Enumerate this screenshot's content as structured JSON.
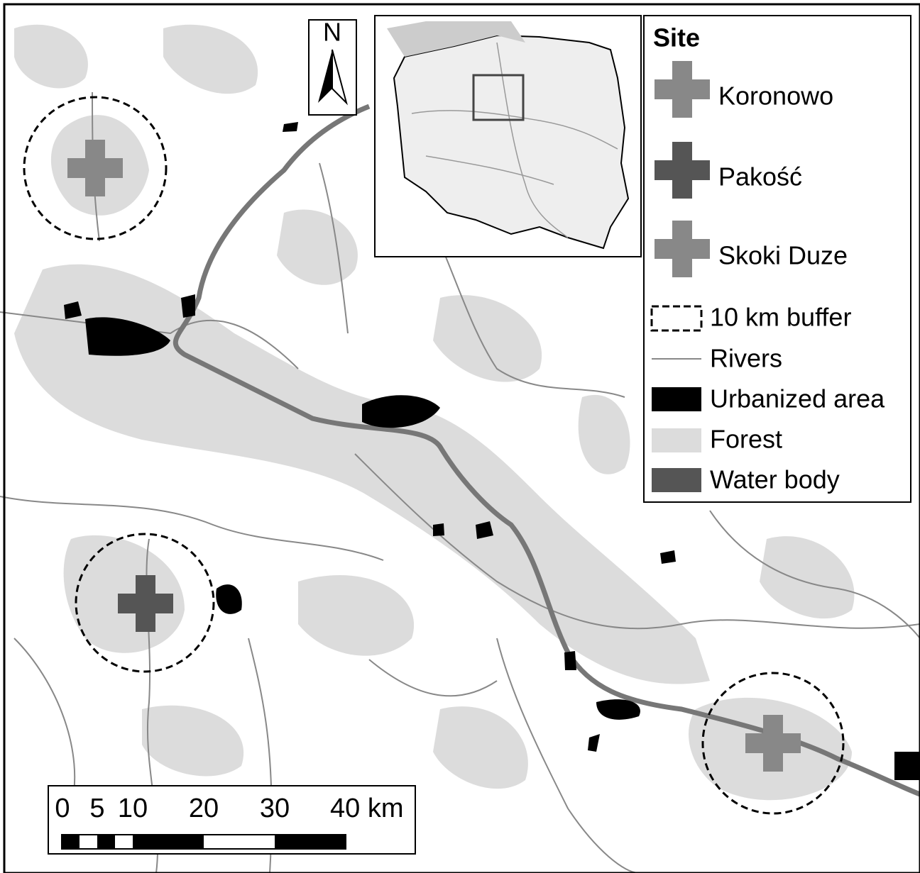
{
  "legend": {
    "title": "Site",
    "sites": [
      "Koronowo",
      "Pakość",
      "Skoki Duze"
    ],
    "layers": [
      "10 km buffer",
      "Rivers",
      "Urbanized area",
      "Forest",
      "Water body"
    ]
  },
  "north_arrow": "N",
  "scale_bar": {
    "labels": [
      "0",
      "5",
      "10",
      "20",
      "30",
      "40 km"
    ]
  }
}
